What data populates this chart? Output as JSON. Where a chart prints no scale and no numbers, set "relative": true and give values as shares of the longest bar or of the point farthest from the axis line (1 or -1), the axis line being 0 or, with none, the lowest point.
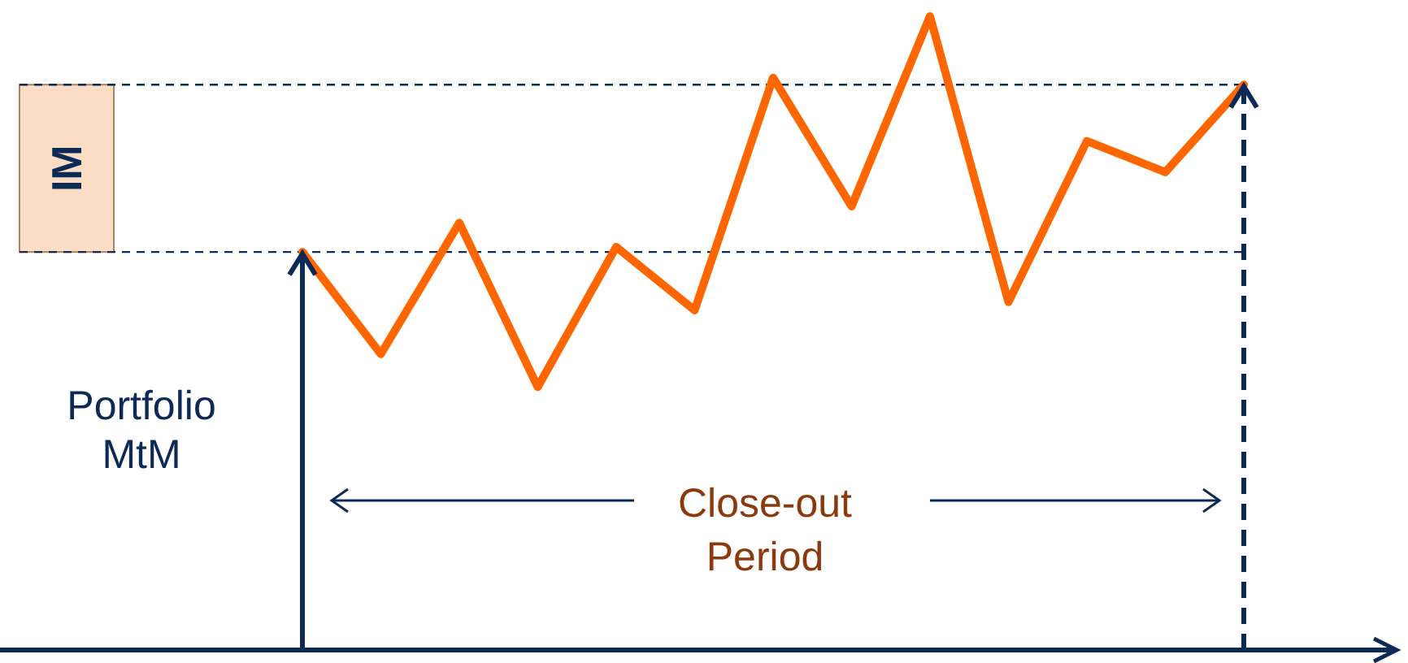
{
  "chart_data": {
    "type": "line",
    "relative": true,
    "categories": [
      null,
      null,
      null,
      null,
      null,
      null,
      null,
      null,
      null,
      null,
      null,
      null,
      null
    ],
    "series": [
      {
        "color": "#ff6600",
        "values": [
          0.628,
          0.467,
          0.674,
          0.415,
          0.636,
          0.536,
          0.903,
          0.7,
          1,
          0.549,
          0.803,
          0.754,
          0.892
        ]
      }
    ],
    "ylabel": "Portfolio MtM",
    "annotations": [
      "Close-out Period",
      "IM"
    ],
    "ref_lines": [
      {
        "axis": "y",
        "value": 0.892,
        "color": "#0d2a57",
        "line_style": "dashed"
      },
      {
        "axis": "y",
        "value": 0.628,
        "color": "#0d2a57",
        "line_style": "dashed"
      }
    ],
    "marker": "none",
    "line_style": "solid"
  }
}
